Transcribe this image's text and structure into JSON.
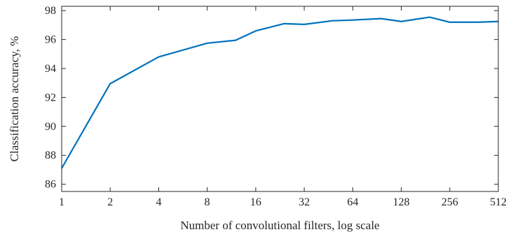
{
  "chart_data": {
    "type": "line",
    "x_scale": "log2",
    "xlabel": "Number of convolutional filters, log scale",
    "ylabel": "Classification accuracy, %",
    "xlim": [
      1,
      512
    ],
    "ylim": [
      85.5,
      98.3
    ],
    "xticks": [
      1,
      2,
      4,
      8,
      16,
      32,
      64,
      128,
      256,
      512
    ],
    "xtick_labels": [
      "1",
      "2",
      "4",
      "8",
      "16",
      "32",
      "64",
      "128",
      "256",
      "512"
    ],
    "yticks": [
      86,
      88,
      90,
      92,
      94,
      96,
      98
    ],
    "ytick_labels": [
      "86",
      "88",
      "90",
      "92",
      "94",
      "96",
      "98"
    ],
    "grid": false,
    "line_color": "#0072BD",
    "series": [
      {
        "x": [
          1,
          2,
          4,
          8,
          12,
          16,
          24,
          32,
          48,
          64,
          96,
          128,
          192,
          256,
          384,
          512
        ],
        "values": [
          87.1,
          92.95,
          94.8,
          95.75,
          95.95,
          96.6,
          97.1,
          97.05,
          97.3,
          97.35,
          97.45,
          97.25,
          97.55,
          97.2,
          97.2,
          97.25
        ]
      }
    ]
  }
}
